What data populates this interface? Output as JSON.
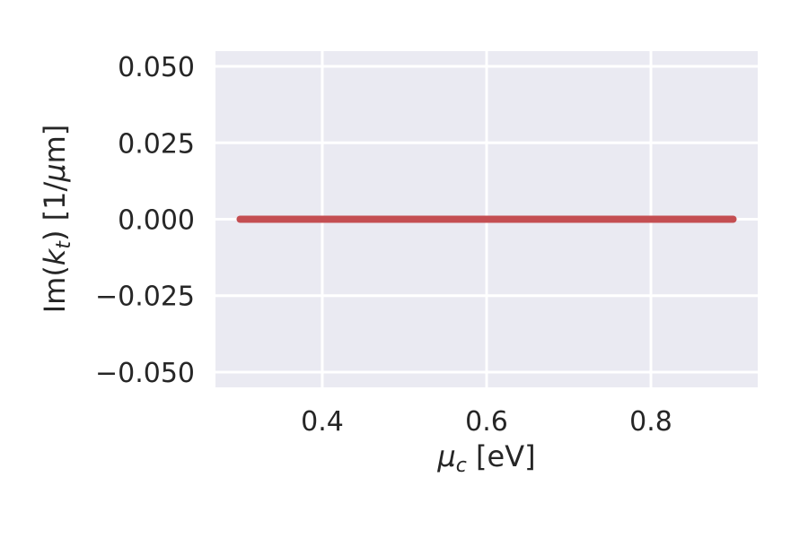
{
  "chart_data": {
    "type": "line",
    "title": "",
    "xlabel": {
      "symbol": "μ",
      "subscript": "c",
      "unit": " [eV]"
    },
    "ylabel": {
      "prefix": "Im(",
      "symbol": "k",
      "subscript": "t",
      "suffix": ") [1/",
      "mu": "μ",
      "tail": "m]"
    },
    "xlim": [
      0.27,
      0.93
    ],
    "ylim": [
      -0.055,
      0.055
    ],
    "x_ticks": [
      0.4,
      0.6,
      0.8
    ],
    "x_tick_labels": [
      "0.4",
      "0.6",
      "0.8"
    ],
    "y_ticks": [
      0.05,
      0.025,
      0.0,
      -0.025,
      -0.05
    ],
    "y_tick_labels": [
      "0.050",
      "0.025",
      "0.000",
      "−0.025",
      "−0.050"
    ],
    "grid": true,
    "background_color": "#eaeaf2",
    "series": [
      {
        "color": "#c44e52",
        "x": [
          0.3,
          0.9
        ],
        "y": [
          0.0,
          0.0
        ]
      }
    ]
  }
}
